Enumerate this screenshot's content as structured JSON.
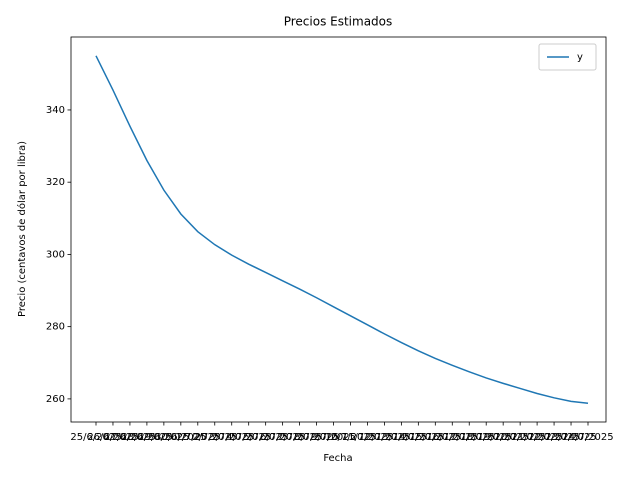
{
  "chart_data": {
    "type": "line",
    "title": "Precios Estimados",
    "x_label": "Fecha",
    "y_label": "Precio (centavos de dólar por libra)",
    "categories": [
      "25/6/2025",
      "26/6/2025",
      "27/6/2025",
      "28/6/2025",
      "29/6/2025",
      "30/6/2025",
      "1/7/2025",
      "2/7/2025",
      "3/7/2025",
      "4/7/2025",
      "5/7/2025",
      "6/7/2025",
      "7/7/2025",
      "8/7/2025",
      "9/7/2025",
      "10/7/2025",
      "11/7/2025",
      "12/7/2025",
      "13/7/2025",
      "14/7/2025",
      "15/7/2025",
      "16/7/2025",
      "17/7/2025",
      "18/7/2025",
      "19/7/2025",
      "20/7/2025",
      "21/7/2025",
      "22/7/2025",
      "23/7/2025",
      "24/7/2025"
    ],
    "series": [
      {
        "name": "y",
        "color": "#1f77b4",
        "values": [
          355,
          345.5,
          335.5,
          326,
          317.8,
          311.2,
          306.3,
          302.7,
          299.8,
          297.3,
          295,
          292.7,
          290.4,
          288,
          285.5,
          283,
          280.5,
          278,
          275.6,
          273.3,
          271.2,
          269.3,
          267.5,
          265.8,
          264.3,
          262.9,
          261.5,
          260.3,
          259.3,
          258.8
        ]
      }
    ],
    "ylim": [
      253.6,
      360.2
    ],
    "yticks": [
      260,
      280,
      300,
      320,
      340
    ],
    "grid": false,
    "legend": "upper right"
  }
}
